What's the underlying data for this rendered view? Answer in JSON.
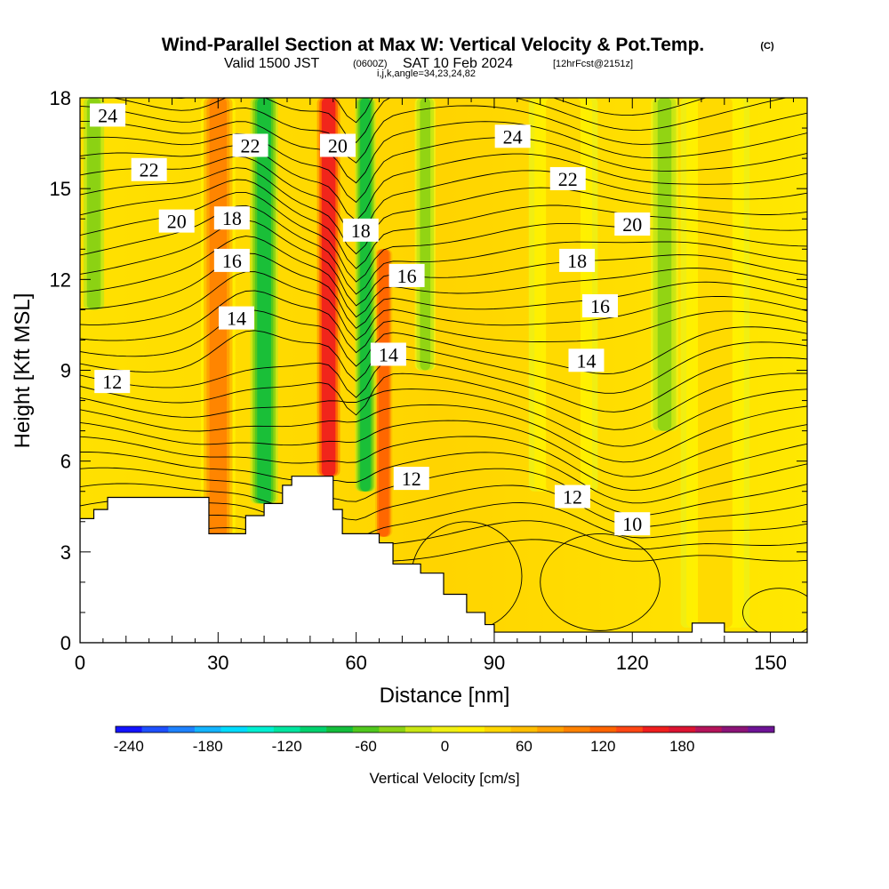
{
  "title": {
    "main": "Wind-Parallel Section at Max W: Vertical Velocity & Pot.Temp.",
    "copyright": "(C)",
    "valid_prefix": "Valid 1500 JST",
    "valid_utc": "(0600Z)",
    "valid_date": "SAT 10 Feb 2024",
    "forecast": "[12hrFcst@2151z]",
    "params": "i,j,k,angle=34,23,24,82"
  },
  "colorbar": {
    "label": "Vertical Velocity [cm/s]",
    "tick_labels": [
      "-240",
      "-180",
      "-120",
      "-60",
      "0",
      "60",
      "120",
      "180"
    ],
    "colors": [
      "#1414ff",
      "#1e50ff",
      "#1e82ff",
      "#14b4ff",
      "#00dcff",
      "#00f0d2",
      "#00e6a0",
      "#00d26e",
      "#14be3c",
      "#50c81e",
      "#8cd214",
      "#c8e614",
      "#f0f014",
      "#fff000",
      "#ffd700",
      "#ffbe00",
      "#ffa000",
      "#ff8200",
      "#ff6400",
      "#ff4614",
      "#f01e1e",
      "#dc1432",
      "#b4145a",
      "#8c1478",
      "#6e1496"
    ]
  },
  "chart_data": {
    "type": "heatmap",
    "xlabel": "Distance [nm]",
    "ylabel": "Height [Kft MSL]",
    "xlim": [
      0,
      158
    ],
    "ylim": [
      0,
      18
    ],
    "xticks": [
      0,
      30,
      60,
      90,
      120,
      150
    ],
    "yticks": [
      0,
      3,
      6,
      9,
      12,
      15,
      18
    ],
    "grid": false,
    "field": "Vertical Velocity [cm/s]",
    "contour_field": "Pot.Temp. (C)",
    "terrain": [
      {
        "x": 0,
        "h": 4.1
      },
      {
        "x": 3,
        "h": 4.4
      },
      {
        "x": 6,
        "h": 4.8
      },
      {
        "x": 25,
        "h": 4.8
      },
      {
        "x": 28,
        "h": 3.6
      },
      {
        "x": 30,
        "h": 3.6
      },
      {
        "x": 36,
        "h": 4.2
      },
      {
        "x": 40,
        "h": 4.6
      },
      {
        "x": 44,
        "h": 5.2
      },
      {
        "x": 46,
        "h": 5.5
      },
      {
        "x": 52,
        "h": 5.5
      },
      {
        "x": 55,
        "h": 4.4
      },
      {
        "x": 57,
        "h": 3.6
      },
      {
        "x": 65,
        "h": 3.3
      },
      {
        "x": 68,
        "h": 2.6
      },
      {
        "x": 74,
        "h": 2.3
      },
      {
        "x": 79,
        "h": 1.6
      },
      {
        "x": 84,
        "h": 1.0
      },
      {
        "x": 88,
        "h": 0.6
      },
      {
        "x": 90,
        "h": 0.35
      },
      {
        "x": 132,
        "h": 0.35
      },
      {
        "x": 133,
        "h": 0.65
      },
      {
        "x": 139,
        "h": 0.65
      },
      {
        "x": 140,
        "h": 0.35
      },
      {
        "x": 158,
        "h": 0.35
      }
    ],
    "updraft_bands": [
      {
        "x": 30,
        "w": 5,
        "from": 3.5,
        "to": 18,
        "value": 100
      },
      {
        "x": 54,
        "w": 4,
        "from": 5.5,
        "to": 18,
        "value": 150
      },
      {
        "x": 66,
        "w": 3,
        "from": 3.5,
        "to": 13,
        "value": 120
      },
      {
        "x": 105,
        "w": 10,
        "from": 5,
        "to": 18,
        "value": 35
      },
      {
        "x": 138,
        "w": 10,
        "from": 0.5,
        "to": 18,
        "value": 35
      }
    ],
    "downdraft_bands": [
      {
        "x": 3,
        "w": 3,
        "from": 11,
        "to": 18,
        "value": -50
      },
      {
        "x": 40,
        "w": 4,
        "from": 4.6,
        "to": 18,
        "value": -90
      },
      {
        "x": 62,
        "w": 3,
        "from": 5,
        "to": 18,
        "value": -80
      },
      {
        "x": 75,
        "w": 3,
        "from": 9,
        "to": 18,
        "value": -40
      },
      {
        "x": 127,
        "w": 4,
        "from": 7,
        "to": 18,
        "value": -40
      }
    ],
    "contour_labels": [
      {
        "x": 6,
        "y": 17.4,
        "text": "24"
      },
      {
        "x": 15,
        "y": 15.6,
        "text": "22"
      },
      {
        "x": 21,
        "y": 13.9,
        "text": "20"
      },
      {
        "x": 33,
        "y": 14.0,
        "text": "18"
      },
      {
        "x": 33,
        "y": 12.6,
        "text": "16"
      },
      {
        "x": 34,
        "y": 10.7,
        "text": "14"
      },
      {
        "x": 7,
        "y": 8.6,
        "text": "12"
      },
      {
        "x": 37,
        "y": 16.4,
        "text": "22"
      },
      {
        "x": 56,
        "y": 16.4,
        "text": "20"
      },
      {
        "x": 61,
        "y": 13.6,
        "text": "18"
      },
      {
        "x": 71,
        "y": 12.1,
        "text": "16"
      },
      {
        "x": 67,
        "y": 9.5,
        "text": "14"
      },
      {
        "x": 72,
        "y": 5.4,
        "text": "12"
      },
      {
        "x": 94,
        "y": 16.7,
        "text": "24"
      },
      {
        "x": 106,
        "y": 15.3,
        "text": "22"
      },
      {
        "x": 120,
        "y": 13.8,
        "text": "20"
      },
      {
        "x": 108,
        "y": 12.6,
        "text": "18"
      },
      {
        "x": 113,
        "y": 11.1,
        "text": "16"
      },
      {
        "x": 110,
        "y": 9.3,
        "text": "14"
      },
      {
        "x": 107,
        "y": 4.8,
        "text": "12"
      },
      {
        "x": 120,
        "y": 3.9,
        "text": "10"
      }
    ]
  }
}
